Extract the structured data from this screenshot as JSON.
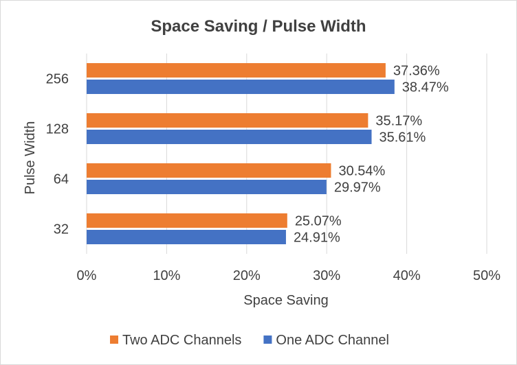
{
  "chart_data": {
    "type": "bar",
    "orientation": "horizontal",
    "title": "Space Saving / Pulse Width",
    "xlabel": "Space Saving",
    "ylabel": "Pulse Width",
    "categories": [
      "256",
      "128",
      "64",
      "32"
    ],
    "series": [
      {
        "name": "Two ADC Channels",
        "color": "#ED7D31",
        "values": [
          37.36,
          35.17,
          30.54,
          25.07
        ],
        "labels": [
          "37.36%",
          "35.17%",
          "30.54%",
          "25.07%"
        ]
      },
      {
        "name": "One ADC Channel",
        "color": "#4472C4",
        "values": [
          38.47,
          35.61,
          29.97,
          24.91
        ],
        "labels": [
          "38.47%",
          "35.61%",
          "29.97%",
          "24.91%"
        ]
      }
    ],
    "xlim": [
      0,
      50
    ],
    "xticks": [
      "0%",
      "10%",
      "20%",
      "30%",
      "40%",
      "50%"
    ],
    "grid": true,
    "legend_position": "bottom",
    "gridline_color": "#D9D9D9",
    "text_color": "#404040"
  }
}
